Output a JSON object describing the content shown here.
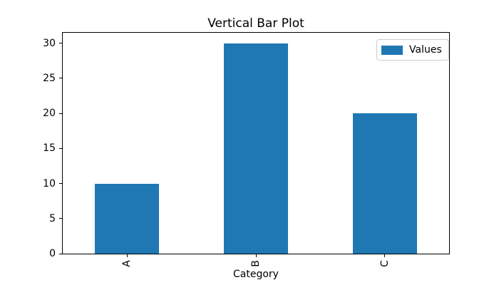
{
  "chart_data": {
    "type": "bar",
    "title": "Vertical Bar Plot",
    "xlabel": "Category",
    "ylabel": "",
    "categories": [
      "A",
      "B",
      "C"
    ],
    "series": [
      {
        "name": "Values",
        "values": [
          10,
          30,
          20
        ],
        "color": "#1f77b4"
      }
    ],
    "yticks": [
      0,
      5,
      10,
      15,
      20,
      25,
      30
    ],
    "ylim": [
      0,
      31.5
    ],
    "bar_width_fraction": 0.5,
    "x_tick_rotation": 90,
    "grid": false,
    "legend_position": "upper right",
    "colors": {
      "bar": "#1f77b4",
      "axis": "#000000",
      "text": "#000000",
      "legend_border": "#cccccc",
      "background": "#ffffff"
    }
  }
}
